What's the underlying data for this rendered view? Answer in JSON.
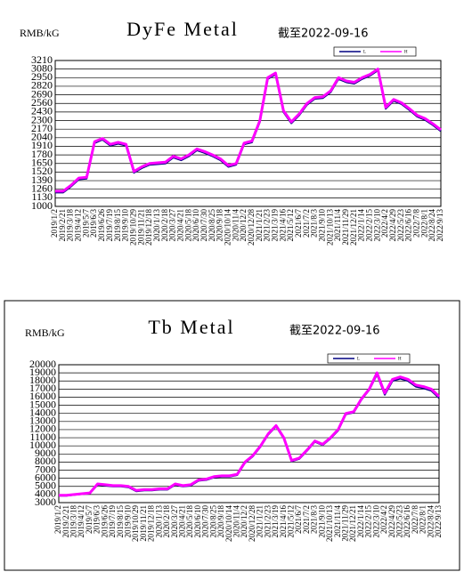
{
  "chart_data": [
    {
      "type": "line",
      "title": "DyFe Metal",
      "ylabel": "RMB/kG",
      "subtitle": "截至2022-09-16",
      "categories": [
        "2019/1/2",
        "2019/2/21",
        "2019/3/18",
        "2019/4/12",
        "2019/5/7",
        "2019/6/3",
        "2019/6/26",
        "2019/7/19",
        "2019/8/15",
        "2019/9/10",
        "2019/10/29",
        "2019/11/21",
        "2019/12/18",
        "2020/1/13",
        "2020/2/18",
        "2020/3/27",
        "2020/4/21",
        "2020/5/18",
        "2020/6/10",
        "2020/7/30",
        "2020/8/25",
        "2020/9/18",
        "2020/10/14",
        "2020/11/4",
        "2020/12/2",
        "2020/12/28",
        "2021/1/21",
        "2021/2/23",
        "2021/3/19",
        "2021/4/16",
        "2021/5/12",
        "2021/6/7",
        "2021/7/2",
        "2021/8/3",
        "2021/9/10",
        "2021/10/13",
        "2021/11/4",
        "2021/11/29",
        "2021/12/21",
        "2022/1/14",
        "2022/2/15",
        "2022/3/10",
        "2022/4/2",
        "2022/4/29",
        "2022/5/23",
        "2022/6/16",
        "2022/7/8",
        "2022/8/1",
        "2022/8/24",
        "2022/9/13"
      ],
      "series": [
        {
          "name": "L",
          "color": "#000080",
          "values": [
            1210,
            1210,
            1300,
            1410,
            1420,
            1960,
            2010,
            1920,
            1950,
            1920,
            1510,
            1580,
            1630,
            1640,
            1650,
            1740,
            1700,
            1760,
            1850,
            1810,
            1760,
            1700,
            1600,
            1630,
            1940,
            1970,
            2280,
            2930,
            3000,
            2430,
            2260,
            2380,
            2540,
            2630,
            2640,
            2730,
            2930,
            2880,
            2860,
            2930,
            2980,
            3060,
            2480,
            2600,
            2550,
            2460,
            2360,
            2310,
            2230,
            2140
          ]
        },
        {
          "name": "H",
          "color": "#ff00ff",
          "values": [
            1230,
            1230,
            1320,
            1430,
            1440,
            1980,
            2030,
            1940,
            1970,
            1940,
            1530,
            1600,
            1650,
            1660,
            1670,
            1760,
            1720,
            1780,
            1870,
            1830,
            1780,
            1720,
            1620,
            1650,
            1960,
            1990,
            2300,
            2950,
            3020,
            2450,
            2280,
            2400,
            2560,
            2650,
            2660,
            2750,
            2950,
            2900,
            2880,
            2950,
            3000,
            3080,
            2500,
            2620,
            2570,
            2480,
            2380,
            2330,
            2250,
            2160
          ]
        }
      ],
      "ylim": [
        1000,
        3210
      ],
      "yticks": [
        1000,
        1130,
        1260,
        1390,
        1520,
        1650,
        1780,
        1910,
        2040,
        2170,
        2300,
        2430,
        2560,
        2690,
        2820,
        2950,
        3080,
        3210
      ],
      "grid": true
    },
    {
      "type": "line",
      "title": "Tb Metal",
      "ylabel": "RMB/kG",
      "subtitle": "截至2022-09-16",
      "categories": [
        "2019/1/2",
        "2019/2/21",
        "2019/3/18",
        "2019/4/12",
        "2019/5/7",
        "2019/6/3",
        "2019/6/26",
        "2019/7/19",
        "2019/8/15",
        "2019/9/10",
        "2019/10/29",
        "2019/11/21",
        "2019/12/18",
        "2020/1/13",
        "2020/2/18",
        "2020/3/27",
        "2020/4/21",
        "2020/5/18",
        "2020/6/10",
        "2020/7/30",
        "2020/8/25",
        "2020/9/18",
        "2020/10/14",
        "2020/11/4",
        "2020/12/2",
        "2020/12/28",
        "2021/1/21",
        "2021/2/23",
        "2021/3/19",
        "2021/4/16",
        "2021/5/12",
        "2021/6/7",
        "2021/7/2",
        "2021/8/3",
        "2021/9/10",
        "2021/10/13",
        "2021/11/4",
        "2021/11/29",
        "2021/12/21",
        "2022/1/14",
        "2022/2/15",
        "2022/3/10",
        "2022/4/2",
        "2022/4/29",
        "2022/5/23",
        "2022/6/16",
        "2022/7/8",
        "2022/8/1",
        "2022/8/24",
        "2022/9/13"
      ],
      "series": [
        {
          "name": "L",
          "color": "#000080",
          "values": [
            3850,
            3850,
            3950,
            4050,
            4150,
            5200,
            5100,
            5000,
            5000,
            4900,
            4400,
            4500,
            4500,
            4600,
            4600,
            5200,
            5000,
            5100,
            5700,
            5800,
            6100,
            6200,
            6200,
            6400,
            7900,
            8700,
            9900,
            11400,
            12400,
            10900,
            8100,
            8400,
            9400,
            10500,
            10100,
            10900,
            11900,
            13900,
            14100,
            15700,
            16900,
            18800,
            16300,
            18000,
            18300,
            18000,
            17300,
            17100,
            16800,
            15900
          ]
        },
        {
          "name": "H",
          "color": "#ff00ff",
          "values": [
            3900,
            3900,
            4000,
            4100,
            4200,
            5300,
            5200,
            5100,
            5100,
            5000,
            4500,
            4600,
            4600,
            4700,
            4700,
            5300,
            5100,
            5200,
            5800,
            5900,
            6200,
            6300,
            6300,
            6500,
            8000,
            8800,
            10000,
            11500,
            12500,
            11000,
            8200,
            8500,
            9500,
            10600,
            10200,
            11000,
            12000,
            14000,
            14200,
            15800,
            17000,
            19000,
            16500,
            18200,
            18500,
            18200,
            17500,
            17300,
            17000,
            16100
          ]
        }
      ],
      "ylim": [
        3000,
        20000
      ],
      "yticks": [
        3000,
        4000,
        5000,
        6000,
        7000,
        8000,
        9000,
        10000,
        11000,
        12000,
        13000,
        14000,
        15000,
        16000,
        17000,
        18000,
        19000,
        20000
      ],
      "grid": true
    }
  ]
}
